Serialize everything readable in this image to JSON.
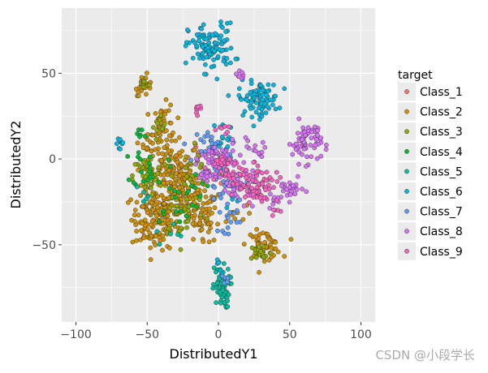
{
  "chart_data": {
    "type": "scatter",
    "xlabel": "DistributedY1",
    "ylabel": "DistributedY2",
    "xlim": [
      -110,
      110
    ],
    "ylim": [
      -95,
      88
    ],
    "x_ticks": [
      -100,
      -50,
      0,
      50,
      100
    ],
    "y_ticks": [
      -50,
      0,
      50
    ],
    "x_tick_labels": [
      "−100",
      "−50",
      "0",
      "50",
      "100"
    ],
    "y_tick_labels": [
      "−50",
      "0",
      "50"
    ],
    "grid": true,
    "legend_position": "right",
    "legend_title": "target",
    "series": [
      {
        "name": "Class_1",
        "color": "#f8766d",
        "clusters": [
          [
            -15,
            3,
            3,
            4,
            6
          ],
          [
            5,
            -10,
            4,
            3,
            4
          ],
          [
            -30,
            -5,
            3,
            3,
            3
          ]
        ]
      },
      {
        "name": "Class_2",
        "color": "#d39200",
        "clusters": [
          [
            -45,
            -35,
            8,
            9,
            140
          ],
          [
            -25,
            -18,
            9,
            10,
            130
          ],
          [
            -35,
            -5,
            8,
            8,
            90
          ],
          [
            -12,
            -35,
            6,
            8,
            60
          ],
          [
            -38,
            20,
            4,
            6,
            40
          ],
          [
            -50,
            10,
            3,
            3,
            15
          ],
          [
            -52,
            43,
            3,
            3,
            25
          ],
          [
            32,
            -50,
            6,
            4,
            50
          ],
          [
            10,
            -33,
            5,
            3,
            10
          ]
        ]
      },
      {
        "name": "Class_3",
        "color": "#93aa00",
        "clusters": [
          [
            -50,
            -10,
            5,
            6,
            35
          ],
          [
            -52,
            44,
            2,
            2,
            10
          ],
          [
            30,
            -55,
            4,
            3,
            20
          ],
          [
            -25,
            -30,
            8,
            8,
            30
          ],
          [
            -40,
            18,
            3,
            4,
            12
          ],
          [
            -20,
            -5,
            6,
            8,
            20
          ]
        ]
      },
      {
        "name": "Class_4",
        "color": "#00ba38",
        "clusters": [
          [
            -48,
            -5,
            6,
            6,
            20
          ],
          [
            -30,
            -25,
            8,
            6,
            15
          ],
          [
            -15,
            -15,
            6,
            6,
            10
          ],
          [
            -55,
            15,
            3,
            3,
            6
          ]
        ]
      },
      {
        "name": "Class_5",
        "color": "#00c19f",
        "clusters": [
          [
            2,
            -75,
            3,
            6,
            60
          ],
          [
            -35,
            -45,
            5,
            5,
            6
          ],
          [
            -55,
            -20,
            3,
            3,
            5
          ]
        ]
      },
      {
        "name": "Class_6",
        "color": "#00b9e3",
        "clusters": [
          [
            -5,
            65,
            8,
            7,
            110
          ],
          [
            28,
            35,
            7,
            5,
            90
          ],
          [
            4,
            10,
            4,
            6,
            20
          ],
          [
            -68,
            9,
            2,
            2,
            10
          ],
          [
            10,
            -20,
            3,
            3,
            8
          ],
          [
            2,
            -65,
            2,
            3,
            6
          ]
        ]
      },
      {
        "name": "Class_7",
        "color": "#619cff",
        "clusters": [
          [
            -5,
            8,
            5,
            5,
            25
          ],
          [
            8,
            -35,
            4,
            4,
            15
          ],
          [
            0,
            -15,
            4,
            5,
            15
          ],
          [
            20,
            -15,
            4,
            3,
            10
          ],
          [
            5,
            -70,
            2,
            2,
            6
          ]
        ]
      },
      {
        "name": "Class_8",
        "color": "#db72fb",
        "clusters": [
          [
            62,
            10,
            5,
            6,
            70
          ],
          [
            50,
            -18,
            5,
            3,
            25
          ],
          [
            15,
            -15,
            8,
            5,
            40
          ],
          [
            0,
            0,
            6,
            5,
            60
          ],
          [
            -8,
            -10,
            4,
            3,
            20
          ],
          [
            17,
            50,
            2,
            2,
            8
          ],
          [
            38,
            -25,
            2,
            3,
            8
          ],
          [
            25,
            5,
            4,
            3,
            15
          ]
        ]
      },
      {
        "name": "Class_9",
        "color": "#ff61c3",
        "clusters": [
          [
            28,
            -15,
            7,
            5,
            60
          ],
          [
            15,
            -10,
            6,
            5,
            25
          ],
          [
            -15,
            30,
            2,
            2,
            8
          ],
          [
            3,
            20,
            2,
            2,
            6
          ],
          [
            0,
            -5,
            4,
            4,
            20
          ],
          [
            38,
            -30,
            2,
            2,
            5
          ]
        ]
      }
    ]
  },
  "watermark": "CSDN @小段学长"
}
